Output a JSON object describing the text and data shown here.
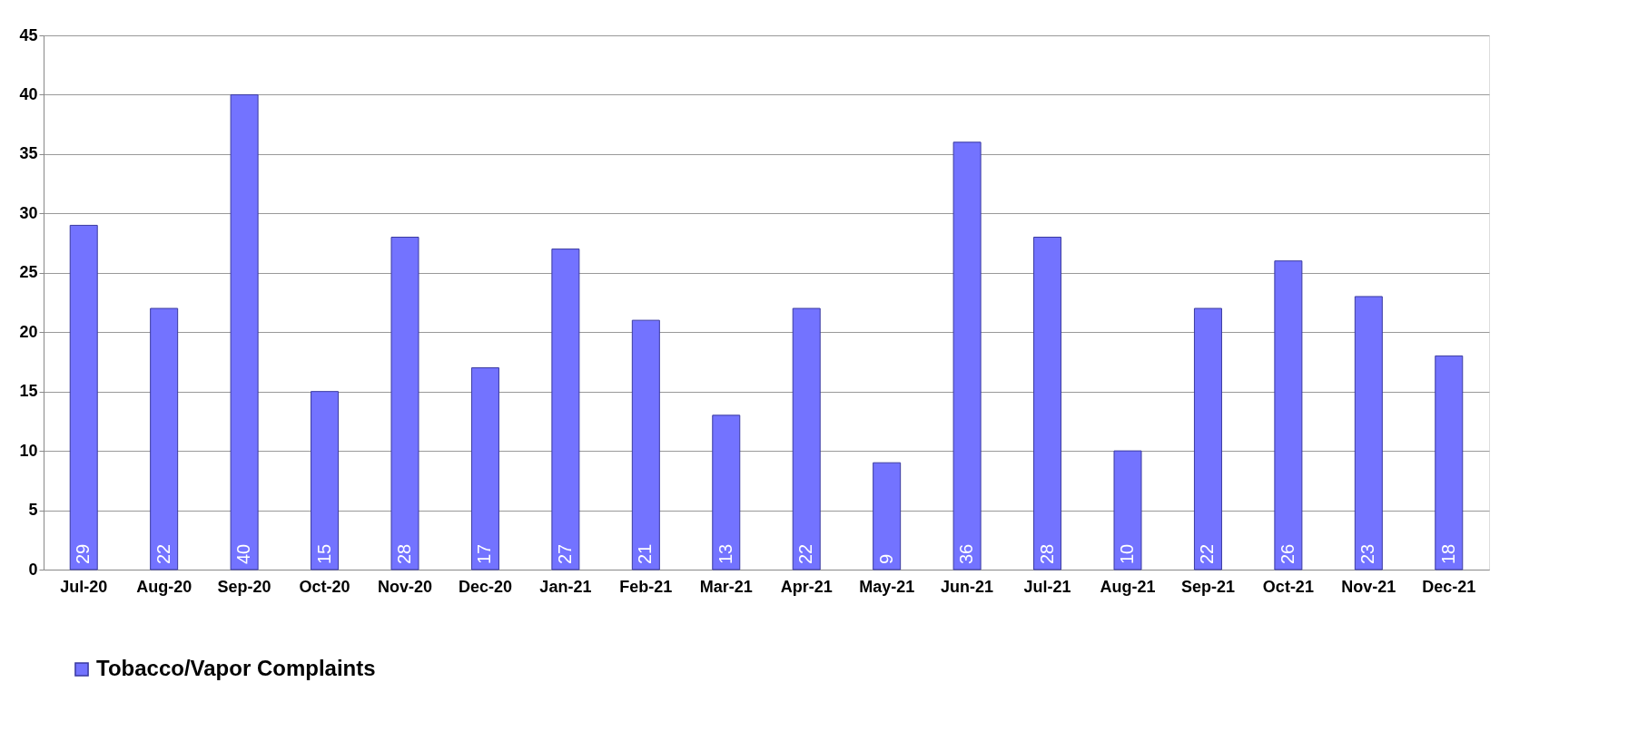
{
  "chart_data": {
    "type": "bar",
    "categories": [
      "Jul-20",
      "Aug-20",
      "Sep-20",
      "Oct-20",
      "Nov-20",
      "Dec-20",
      "Jan-21",
      "Feb-21",
      "Mar-21",
      "Apr-21",
      "May-21",
      "Jun-21",
      "Jul-21",
      "Aug-21",
      "Sep-21",
      "Oct-21",
      "Nov-21",
      "Dec-21"
    ],
    "series": [
      {
        "name": "Tobacco/Vapor  Complaints",
        "color": "#7373ff",
        "values": [
          29,
          22,
          40,
          15,
          28,
          17,
          27,
          21,
          13,
          22,
          9,
          36,
          28,
          10,
          22,
          26,
          23,
          18
        ]
      }
    ],
    "ylim": [
      0,
      45
    ],
    "yticks": [
      0,
      5,
      10,
      15,
      20,
      25,
      30,
      35,
      40,
      45
    ],
    "grid": "y",
    "legend": "bottom",
    "data_labels": true
  }
}
